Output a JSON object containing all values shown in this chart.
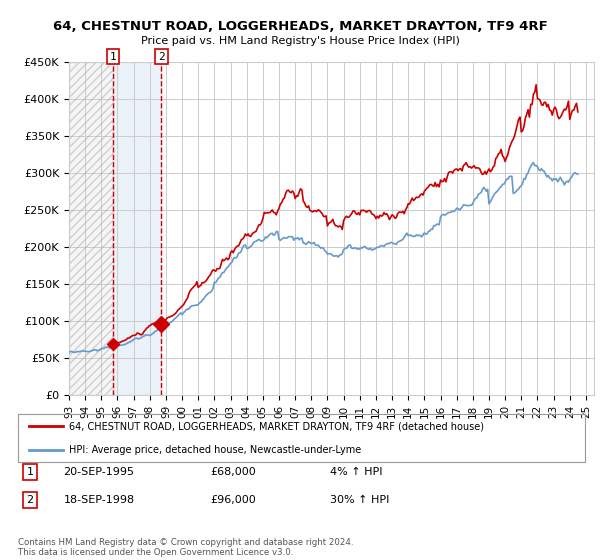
{
  "title": "64, CHESTNUT ROAD, LOGGERHEADS, MARKET DRAYTON, TF9 4RF",
  "subtitle": "Price paid vs. HM Land Registry's House Price Index (HPI)",
  "ylim": [
    0,
    450000
  ],
  "yticks": [
    0,
    50000,
    100000,
    150000,
    200000,
    250000,
    300000,
    350000,
    400000,
    450000
  ],
  "ytick_labels": [
    "£0",
    "£50K",
    "£100K",
    "£150K",
    "£200K",
    "£250K",
    "£300K",
    "£350K",
    "£400K",
    "£450K"
  ],
  "xlim_start": 1993.0,
  "xlim_end": 2025.5,
  "xticks": [
    1993,
    1994,
    1995,
    1996,
    1997,
    1998,
    1999,
    2000,
    2001,
    2002,
    2003,
    2004,
    2005,
    2006,
    2007,
    2008,
    2009,
    2010,
    2011,
    2012,
    2013,
    2014,
    2015,
    2016,
    2017,
    2018,
    2019,
    2020,
    2021,
    2022,
    2023,
    2024,
    2025
  ],
  "xtick_labels": [
    "93",
    "94",
    "95",
    "96",
    "97",
    "98",
    "99",
    "00",
    "01",
    "02",
    "03",
    "04",
    "05",
    "06",
    "07",
    "08",
    "09",
    "10",
    "11",
    "12",
    "13",
    "14",
    "15",
    "16",
    "17",
    "18",
    "19",
    "20",
    "21",
    "22",
    "23",
    "24",
    "25"
  ],
  "hatch_end_x": 1995.72,
  "sale1_x": 1995.72,
  "sale1_y": 68000,
  "sale1_label": "1",
  "sale1_date": "20-SEP-1995",
  "sale1_price": "£68,000",
  "sale1_hpi": "4% ↑ HPI",
  "sale2_x": 1998.72,
  "sale2_y": 96000,
  "sale2_label": "2",
  "sale2_date": "18-SEP-1998",
  "sale2_price": "£96,000",
  "sale2_hpi": "30% ↑ HPI",
  "red_line_color": "#cc0000",
  "blue_line_color": "#6699cc",
  "marker_color": "#cc0000",
  "grid_color": "#cccccc",
  "background_color": "#ffffff",
  "legend_label_red": "64, CHESTNUT ROAD, LOGGERHEADS, MARKET DRAYTON, TF9 4RF (detached house)",
  "legend_label_blue": "HPI: Average price, detached house, Newcastle-under-Lyme",
  "footer": "Contains HM Land Registry data © Crown copyright and database right 2024.\nThis data is licensed under the Open Government Licence v3.0."
}
